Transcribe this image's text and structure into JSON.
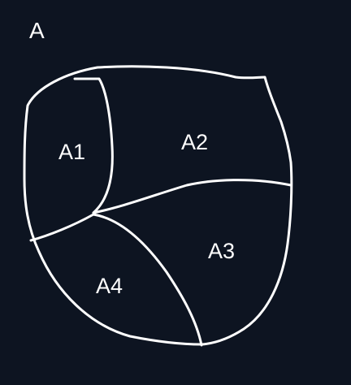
{
  "diagram": {
    "title": "A",
    "regions": [
      {
        "id": "a1",
        "label": "A1"
      },
      {
        "id": "a2",
        "label": "A2"
      },
      {
        "id": "a3",
        "label": "A3"
      },
      {
        "id": "a4",
        "label": "A4"
      }
    ]
  },
  "colors": {
    "background": "#0d1421",
    "ink": "#ffffff"
  }
}
